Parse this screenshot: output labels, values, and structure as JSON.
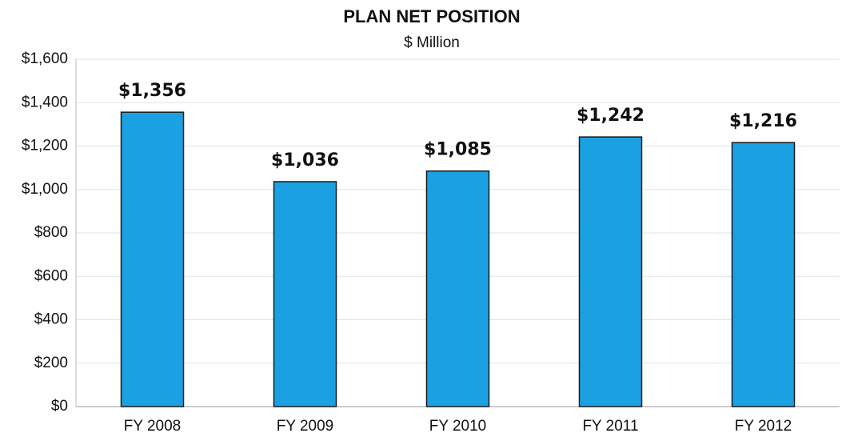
{
  "chart_data": {
    "type": "bar",
    "title": "PLAN NET POSITION",
    "subtitle": "$ Million",
    "categories": [
      "FY 2008",
      "FY 2009",
      "FY 2010",
      "FY 2011",
      "FY 2012"
    ],
    "values": [
      1356,
      1036,
      1085,
      1242,
      1216
    ],
    "value_labels": [
      "$1,356",
      "$1,036",
      "$1,085",
      "$1,242",
      "$1,216"
    ],
    "color": "#1ba1e2",
    "ylim": [
      0,
      1600
    ],
    "yticks": [
      {
        "value": 0,
        "label": "$0"
      },
      {
        "value": 200,
        "label": "$200"
      },
      {
        "value": 400,
        "label": "$400"
      },
      {
        "value": 600,
        "label": "$600"
      },
      {
        "value": 800,
        "label": "$800"
      },
      {
        "value": 1000,
        "label": "$1,000"
      },
      {
        "value": 1200,
        "label": "$1,200"
      },
      {
        "value": 1400,
        "label": "$1,400"
      },
      {
        "value": 1600,
        "label": "$1,600"
      }
    ],
    "grid": true
  }
}
